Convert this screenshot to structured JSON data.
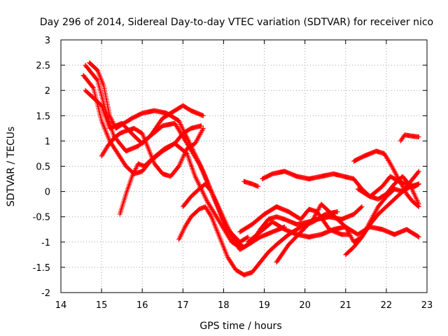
{
  "chart_data": {
    "type": "scatter",
    "title": "Day 296 of 2014, Sidereal Day-to-day VTEC variation (SDTVAR) for receiver nico",
    "xlabel": "GPS time / hours",
    "ylabel": "SDTVAR / TECUs",
    "xlim": [
      14,
      23
    ],
    "ylim": [
      -2,
      3
    ],
    "xticks": [
      14,
      15,
      16,
      17,
      18,
      19,
      20,
      21,
      22,
      23
    ],
    "yticks": [
      -2,
      -1.5,
      -1,
      -0.5,
      0,
      0.5,
      1,
      1.5,
      2,
      2.5,
      3
    ],
    "xtick_labels": [
      "14",
      "15",
      "16",
      "17",
      "18",
      "19",
      "20",
      "21",
      "22",
      "23"
    ],
    "ytick_labels": [
      "-2",
      "-1.5",
      "-1",
      "-0.5",
      "0",
      "0.5",
      "1",
      "1.5",
      "2",
      "2.5",
      "3"
    ],
    "grid": true,
    "marker": "+",
    "color": "#ff0000",
    "series": [
      {
        "name": "track-1",
        "points": [
          [
            14.6,
            2.5
          ],
          [
            14.9,
            2.2
          ],
          [
            15.1,
            1.6
          ],
          [
            15.3,
            1.1
          ],
          [
            15.6,
            0.8
          ],
          [
            15.9,
            0.9
          ],
          [
            16.2,
            1.1
          ],
          [
            16.5,
            1.45
          ],
          [
            16.8,
            1.6
          ],
          [
            17.0,
            1.7
          ],
          [
            17.2,
            1.6
          ],
          [
            17.5,
            1.5
          ]
        ]
      },
      {
        "name": "track-2",
        "points": [
          [
            14.55,
            2.3
          ],
          [
            14.8,
            2.05
          ],
          [
            15.0,
            1.4
          ],
          [
            15.2,
            1.0
          ],
          [
            15.4,
            0.75
          ],
          [
            15.6,
            0.5
          ],
          [
            15.8,
            0.35
          ],
          [
            16.0,
            0.4
          ],
          [
            16.2,
            0.6
          ],
          [
            16.5,
            0.8
          ],
          [
            16.8,
            0.95
          ],
          [
            17.1,
            0.75
          ],
          [
            17.3,
            0.3
          ],
          [
            17.6,
            -0.2
          ],
          [
            17.9,
            -0.6
          ],
          [
            18.2,
            -1.0
          ],
          [
            18.4,
            -1.1
          ]
        ]
      },
      {
        "name": "track-3",
        "points": [
          [
            14.6,
            2.0
          ],
          [
            14.8,
            1.85
          ],
          [
            15.0,
            1.7
          ],
          [
            15.2,
            1.25
          ],
          [
            15.5,
            1.35
          ],
          [
            15.8,
            1.1
          ],
          [
            16.0,
            0.95
          ],
          [
            16.2,
            1.1
          ],
          [
            16.5,
            1.3
          ],
          [
            16.8,
            1.35
          ],
          [
            17.1,
            0.95
          ],
          [
            17.4,
            0.55
          ],
          [
            17.7,
            0.0
          ],
          [
            18.0,
            -0.6
          ],
          [
            18.2,
            -0.9
          ],
          [
            18.4,
            -1.15
          ],
          [
            18.6,
            -1.05
          ],
          [
            18.9,
            -0.9
          ],
          [
            19.2,
            -0.8
          ],
          [
            19.5,
            -0.7
          ]
        ]
      },
      {
        "name": "track-4",
        "points": [
          [
            14.7,
            2.55
          ],
          [
            14.9,
            2.4
          ],
          [
            15.05,
            2.1
          ],
          [
            15.2,
            1.5
          ],
          [
            15.35,
            1.25
          ],
          [
            15.55,
            1.35
          ],
          [
            15.75,
            1.45
          ],
          [
            16.0,
            1.55
          ],
          [
            16.3,
            1.6
          ],
          [
            16.6,
            1.55
          ],
          [
            16.9,
            1.4
          ],
          [
            17.2,
            0.9
          ],
          [
            17.5,
            0.4
          ],
          [
            17.8,
            -0.2
          ],
          [
            18.1,
            -0.75
          ],
          [
            18.4,
            -1.0
          ],
          [
            18.6,
            -0.9
          ]
        ]
      },
      {
        "name": "track-5",
        "points": [
          [
            15.45,
            -0.45
          ],
          [
            15.6,
            -0.05
          ],
          [
            15.75,
            0.3
          ],
          [
            15.9,
            0.55
          ],
          [
            16.05,
            0.5
          ],
          [
            16.25,
            0.65
          ],
          [
            16.55,
            0.85
          ],
          [
            16.8,
            0.95
          ],
          [
            17.0,
            1.15
          ],
          [
            17.2,
            1.25
          ],
          [
            17.45,
            1.3
          ]
        ]
      },
      {
        "name": "track-6",
        "points": [
          [
            16.9,
            -0.95
          ],
          [
            17.05,
            -0.7
          ],
          [
            17.2,
            -0.5
          ],
          [
            17.4,
            -0.35
          ],
          [
            17.55,
            -0.3
          ],
          [
            17.7,
            -0.5
          ],
          [
            17.9,
            -0.9
          ],
          [
            18.1,
            -1.3
          ],
          [
            18.3,
            -1.55
          ],
          [
            18.5,
            -1.65
          ],
          [
            18.7,
            -1.6
          ],
          [
            18.9,
            -1.4
          ],
          [
            19.1,
            -1.2
          ],
          [
            19.3,
            -1.05
          ],
          [
            19.6,
            -0.85
          ],
          [
            19.9,
            -0.7
          ],
          [
            20.2,
            -0.6
          ],
          [
            20.5,
            -0.45
          ],
          [
            20.8,
            -0.4
          ]
        ]
      },
      {
        "name": "track-7",
        "points": [
          [
            17.0,
            -0.3
          ],
          [
            17.2,
            -0.1
          ],
          [
            17.4,
            0.05
          ],
          [
            17.55,
            0.15
          ],
          [
            17.7,
            0.0
          ],
          [
            17.9,
            -0.35
          ],
          [
            18.1,
            -0.7
          ],
          [
            18.3,
            -1.0
          ],
          [
            18.5,
            -1.1
          ],
          [
            18.7,
            -1.0
          ],
          [
            18.9,
            -0.75
          ],
          [
            19.1,
            -0.55
          ],
          [
            19.3,
            -0.5
          ],
          [
            19.5,
            -0.55
          ],
          [
            19.8,
            -0.65
          ],
          [
            20.1,
            -0.6
          ],
          [
            20.3,
            -0.55
          ],
          [
            20.6,
            -0.5
          ],
          [
            20.9,
            -0.55
          ],
          [
            21.2,
            -0.45
          ],
          [
            21.4,
            -0.3
          ]
        ]
      },
      {
        "name": "track-8",
        "points": [
          [
            18.5,
            0.2
          ],
          [
            18.7,
            0.15
          ],
          [
            18.85,
            0.1
          ]
        ]
      },
      {
        "name": "track-9",
        "points": [
          [
            18.95,
            0.25
          ],
          [
            19.2,
            0.35
          ],
          [
            19.5,
            0.4
          ],
          [
            19.8,
            0.3
          ],
          [
            20.1,
            0.25
          ],
          [
            20.4,
            0.3
          ],
          [
            20.7,
            0.35
          ],
          [
            20.95,
            0.3
          ],
          [
            21.2,
            0.25
          ],
          [
            21.4,
            0.05
          ],
          [
            21.6,
            -0.1
          ],
          [
            21.8,
            -0.15
          ],
          [
            22.0,
            -0.05
          ],
          [
            22.2,
            0.15
          ],
          [
            22.4,
            0.3
          ],
          [
            22.6,
            0.1
          ],
          [
            22.8,
            -0.25
          ]
        ]
      },
      {
        "name": "track-10",
        "points": [
          [
            18.4,
            -0.8
          ],
          [
            18.7,
            -0.65
          ],
          [
            19.0,
            -0.45
          ],
          [
            19.3,
            -0.3
          ],
          [
            19.6,
            -0.4
          ],
          [
            19.9,
            -0.55
          ],
          [
            20.1,
            -0.35
          ],
          [
            20.3,
            -0.4
          ],
          [
            20.6,
            -0.75
          ],
          [
            20.9,
            -0.85
          ],
          [
            21.1,
            -0.85
          ]
        ]
      },
      {
        "name": "track-11",
        "points": [
          [
            18.6,
            -1.0
          ],
          [
            18.9,
            -0.8
          ],
          [
            19.2,
            -0.6
          ],
          [
            19.5,
            -0.75
          ],
          [
            19.8,
            -0.85
          ],
          [
            20.1,
            -0.9
          ],
          [
            20.4,
            -0.85
          ],
          [
            20.7,
            -0.75
          ],
          [
            21.0,
            -0.7
          ],
          [
            21.3,
            -0.85
          ],
          [
            21.6,
            -0.7
          ],
          [
            21.9,
            -0.75
          ],
          [
            22.2,
            -0.85
          ],
          [
            22.5,
            -0.75
          ],
          [
            22.8,
            -0.9
          ]
        ]
      },
      {
        "name": "track-12",
        "points": [
          [
            19.3,
            -1.4
          ],
          [
            19.6,
            -1.05
          ],
          [
            19.9,
            -0.8
          ],
          [
            20.2,
            -0.55
          ],
          [
            20.4,
            -0.25
          ],
          [
            20.6,
            -0.4
          ],
          [
            20.8,
            -0.55
          ],
          [
            21.0,
            -0.7
          ],
          [
            21.2,
            -1.0
          ],
          [
            21.4,
            -0.9
          ],
          [
            21.6,
            -0.6
          ],
          [
            21.8,
            -0.3
          ],
          [
            22.0,
            -0.1
          ],
          [
            22.2,
            0.05
          ],
          [
            22.4,
            0.0
          ],
          [
            22.6,
            0.1
          ],
          [
            22.8,
            0.15
          ]
        ]
      },
      {
        "name": "track-13",
        "points": [
          [
            21.0,
            -1.25
          ],
          [
            21.2,
            -1.1
          ],
          [
            21.4,
            -0.9
          ],
          [
            21.6,
            -0.65
          ],
          [
            21.8,
            -0.45
          ],
          [
            22.0,
            -0.3
          ],
          [
            22.2,
            -0.15
          ],
          [
            22.4,
            0.0
          ],
          [
            22.6,
            0.2
          ],
          [
            22.8,
            0.4
          ]
        ]
      },
      {
        "name": "track-14",
        "points": [
          [
            21.2,
            0.6
          ],
          [
            21.45,
            0.7
          ],
          [
            21.75,
            0.8
          ],
          [
            21.95,
            0.75
          ],
          [
            22.1,
            0.55
          ],
          [
            22.3,
            0.25
          ],
          [
            22.5,
            -0.05
          ],
          [
            22.65,
            -0.2
          ],
          [
            22.8,
            -0.3
          ]
        ]
      },
      {
        "name": "track-15",
        "points": [
          [
            21.3,
            0.05
          ],
          [
            21.6,
            -0.1
          ],
          [
            21.9,
            0.1
          ],
          [
            22.1,
            0.3
          ],
          [
            22.3,
            0.2
          ],
          [
            22.5,
            0.15
          ],
          [
            22.7,
            0.1
          ],
          [
            22.8,
            0.15
          ]
        ]
      },
      {
        "name": "track-16",
        "points": [
          [
            22.35,
            1.0
          ],
          [
            22.45,
            1.12
          ],
          [
            22.6,
            1.1
          ],
          [
            22.8,
            1.08
          ]
        ]
      },
      {
        "name": "track-17",
        "points": [
          [
            15.0,
            0.7
          ],
          [
            15.15,
            0.9
          ],
          [
            15.3,
            1.05
          ],
          [
            15.45,
            1.15
          ],
          [
            15.6,
            1.2
          ],
          [
            15.8,
            1.25
          ],
          [
            16.0,
            1.15
          ],
          [
            16.15,
            0.85
          ],
          [
            16.3,
            0.55
          ],
          [
            16.5,
            0.35
          ],
          [
            16.7,
            0.3
          ],
          [
            16.9,
            0.5
          ],
          [
            17.1,
            0.85
          ],
          [
            17.3,
            0.95
          ],
          [
            17.5,
            1.25
          ]
        ]
      }
    ]
  }
}
